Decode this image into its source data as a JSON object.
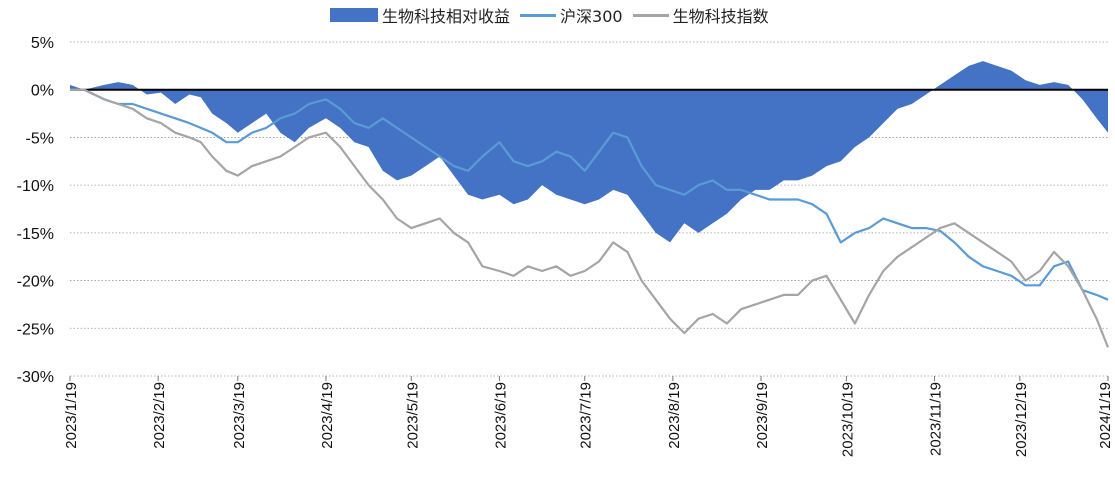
{
  "chart_data": {
    "type": "area",
    "x_is_date": true,
    "x_range": [
      "2023/1/19",
      "2024/1/19"
    ],
    "ylim": [
      -30,
      5
    ],
    "yticks": [
      5,
      0,
      -5,
      -10,
      -15,
      -20,
      -25,
      -30
    ],
    "ytick_labels": [
      "5%",
      "0%",
      "-5%",
      "-10%",
      "-15%",
      "-20%",
      "-25%",
      "-30%"
    ],
    "xtick_labels": [
      "2023/1/19",
      "2023/2/19",
      "2023/3/19",
      "2023/4/19",
      "2023/5/19",
      "2023/6/19",
      "2023/7/19",
      "2023/8/19",
      "2023/9/19",
      "2023/10/19",
      "2023/11/19",
      "2023/12/19",
      "2024/1/19"
    ],
    "grid": "horizontal dotted",
    "legend_position": "top-center",
    "series": [
      {
        "name": "生物科技相对收益",
        "kind": "area",
        "color": "#4472C4",
        "points": [
          [
            "2023/1/19",
            0.5
          ],
          [
            "2023/1/24",
            0.0
          ],
          [
            "2023/1/31",
            0.5
          ],
          [
            "2023/2/5",
            0.8
          ],
          [
            "2023/2/10",
            0.5
          ],
          [
            "2023/2/15",
            -0.5
          ],
          [
            "2023/2/20",
            -0.3
          ],
          [
            "2023/2/25",
            -1.5
          ],
          [
            "2023/3/2",
            -0.5
          ],
          [
            "2023/3/6",
            -0.8
          ],
          [
            "2023/3/10",
            -2.5
          ],
          [
            "2023/3/15",
            -3.5
          ],
          [
            "2023/3/19",
            -4.5
          ],
          [
            "2023/3/24",
            -3.5
          ],
          [
            "2023/3/29",
            -2.5
          ],
          [
            "2023/4/3",
            -4.5
          ],
          [
            "2023/4/8",
            -5.5
          ],
          [
            "2023/4/13",
            -4.0
          ],
          [
            "2023/4/19",
            -3.0
          ],
          [
            "2023/4/24",
            -4.0
          ],
          [
            "2023/4/29",
            -5.5
          ],
          [
            "2023/5/4",
            -6.0
          ],
          [
            "2023/5/9",
            -8.5
          ],
          [
            "2023/5/14",
            -9.5
          ],
          [
            "2023/5/19",
            -9.0
          ],
          [
            "2023/5/24",
            -8.0
          ],
          [
            "2023/5/29",
            -7.0
          ],
          [
            "2023/6/3",
            -9.0
          ],
          [
            "2023/6/8",
            -11.0
          ],
          [
            "2023/6/13",
            -11.5
          ],
          [
            "2023/6/19",
            -11.0
          ],
          [
            "2023/6/24",
            -12.0
          ],
          [
            "2023/6/29",
            -11.5
          ],
          [
            "2023/7/4",
            -10.0
          ],
          [
            "2023/7/9",
            -11.0
          ],
          [
            "2023/7/14",
            -11.5
          ],
          [
            "2023/7/19",
            -12.0
          ],
          [
            "2023/7/24",
            -11.5
          ],
          [
            "2023/7/29",
            -10.5
          ],
          [
            "2023/8/3",
            -11.0
          ],
          [
            "2023/8/8",
            -13.0
          ],
          [
            "2023/8/13",
            -15.0
          ],
          [
            "2023/8/18",
            -16.0
          ],
          [
            "2023/8/23",
            -14.0
          ],
          [
            "2023/8/28",
            -15.0
          ],
          [
            "2023/9/2",
            -14.0
          ],
          [
            "2023/9/7",
            -13.0
          ],
          [
            "2023/9/12",
            -11.5
          ],
          [
            "2023/9/17",
            -10.5
          ],
          [
            "2023/9/22",
            -10.5
          ],
          [
            "2023/9/27",
            -9.5
          ],
          [
            "2023/10/2",
            -9.5
          ],
          [
            "2023/10/7",
            -9.0
          ],
          [
            "2023/10/12",
            -8.0
          ],
          [
            "2023/10/17",
            -7.5
          ],
          [
            "2023/10/22",
            -6.0
          ],
          [
            "2023/10/27",
            -5.0
          ],
          [
            "2023/11/1",
            -3.5
          ],
          [
            "2023/11/6",
            -2.0
          ],
          [
            "2023/11/11",
            -1.5
          ],
          [
            "2023/11/16",
            -0.5
          ],
          [
            "2023/11/21",
            0.5
          ],
          [
            "2023/11/26",
            1.5
          ],
          [
            "2023/12/1",
            2.5
          ],
          [
            "2023/12/6",
            3.0
          ],
          [
            "2023/12/11",
            2.5
          ],
          [
            "2023/12/16",
            2.0
          ],
          [
            "2023/12/21",
            1.0
          ],
          [
            "2023/12/26",
            0.5
          ],
          [
            "2023/12/31",
            0.8
          ],
          [
            "2024/1/5",
            0.5
          ],
          [
            "2024/1/10",
            -1.0
          ],
          [
            "2024/1/15",
            -3.0
          ],
          [
            "2024/1/19",
            -4.5
          ]
        ]
      },
      {
        "name": "沪深300",
        "kind": "line",
        "color": "#5B9BD5",
        "points": [
          [
            "2023/1/19",
            0.0
          ],
          [
            "2023/1/24",
            0.0
          ],
          [
            "2023/1/31",
            -1.0
          ],
          [
            "2023/2/5",
            -1.5
          ],
          [
            "2023/2/10",
            -1.5
          ],
          [
            "2023/2/15",
            -2.0
          ],
          [
            "2023/2/20",
            -2.5
          ],
          [
            "2023/2/25",
            -3.0
          ],
          [
            "2023/3/2",
            -3.5
          ],
          [
            "2023/3/6",
            -4.0
          ],
          [
            "2023/3/10",
            -4.5
          ],
          [
            "2023/3/15",
            -5.5
          ],
          [
            "2023/3/19",
            -5.5
          ],
          [
            "2023/3/24",
            -4.5
          ],
          [
            "2023/3/29",
            -4.0
          ],
          [
            "2023/4/3",
            -3.0
          ],
          [
            "2023/4/8",
            -2.5
          ],
          [
            "2023/4/13",
            -1.5
          ],
          [
            "2023/4/19",
            -1.0
          ],
          [
            "2023/4/24",
            -2.0
          ],
          [
            "2023/4/29",
            -3.5
          ],
          [
            "2023/5/4",
            -4.0
          ],
          [
            "2023/5/9",
            -3.0
          ],
          [
            "2023/5/14",
            -4.0
          ],
          [
            "2023/5/19",
            -5.0
          ],
          [
            "2023/5/24",
            -6.0
          ],
          [
            "2023/5/29",
            -7.0
          ],
          [
            "2023/6/3",
            -8.0
          ],
          [
            "2023/6/8",
            -8.5
          ],
          [
            "2023/6/13",
            -7.0
          ],
          [
            "2023/6/19",
            -5.5
          ],
          [
            "2023/6/24",
            -7.5
          ],
          [
            "2023/6/29",
            -8.0
          ],
          [
            "2023/7/4",
            -7.5
          ],
          [
            "2023/7/9",
            -6.5
          ],
          [
            "2023/7/14",
            -7.0
          ],
          [
            "2023/7/19",
            -8.5
          ],
          [
            "2023/7/24",
            -6.5
          ],
          [
            "2023/7/29",
            -4.5
          ],
          [
            "2023/8/3",
            -5.0
          ],
          [
            "2023/8/8",
            -8.0
          ],
          [
            "2023/8/13",
            -10.0
          ],
          [
            "2023/8/18",
            -10.5
          ],
          [
            "2023/8/23",
            -11.0
          ],
          [
            "2023/8/28",
            -10.0
          ],
          [
            "2023/9/2",
            -9.5
          ],
          [
            "2023/9/7",
            -10.5
          ],
          [
            "2023/9/12",
            -10.5
          ],
          [
            "2023/9/17",
            -11.0
          ],
          [
            "2023/9/22",
            -11.5
          ],
          [
            "2023/9/27",
            -11.5
          ],
          [
            "2023/10/2",
            -11.5
          ],
          [
            "2023/10/7",
            -12.0
          ],
          [
            "2023/10/12",
            -13.0
          ],
          [
            "2023/10/17",
            -16.0
          ],
          [
            "2023/10/22",
            -15.0
          ],
          [
            "2023/10/27",
            -14.5
          ],
          [
            "2023/11/1",
            -13.5
          ],
          [
            "2023/11/6",
            -14.0
          ],
          [
            "2023/11/11",
            -14.5
          ],
          [
            "2023/11/16",
            -14.5
          ],
          [
            "2023/11/21",
            -14.8
          ],
          [
            "2023/11/26",
            -16.0
          ],
          [
            "2023/12/1",
            -17.5
          ],
          [
            "2023/12/6",
            -18.5
          ],
          [
            "2023/12/11",
            -19.0
          ],
          [
            "2023/12/16",
            -19.5
          ],
          [
            "2023/12/21",
            -20.5
          ],
          [
            "2023/12/26",
            -20.5
          ],
          [
            "2023/12/31",
            -18.5
          ],
          [
            "2024/1/5",
            -18.0
          ],
          [
            "2024/1/10",
            -21.0
          ],
          [
            "2024/1/15",
            -21.5
          ],
          [
            "2024/1/19",
            -22.0
          ]
        ]
      },
      {
        "name": "生物科技指数",
        "kind": "line",
        "color": "#A5A5A5",
        "points": [
          [
            "2023/1/19",
            0.0
          ],
          [
            "2023/1/24",
            0.0
          ],
          [
            "2023/1/31",
            -1.0
          ],
          [
            "2023/2/5",
            -1.5
          ],
          [
            "2023/2/10",
            -2.0
          ],
          [
            "2023/2/15",
            -3.0
          ],
          [
            "2023/2/20",
            -3.5
          ],
          [
            "2023/2/25",
            -4.5
          ],
          [
            "2023/3/2",
            -5.0
          ],
          [
            "2023/3/6",
            -5.5
          ],
          [
            "2023/3/10",
            -7.0
          ],
          [
            "2023/3/15",
            -8.5
          ],
          [
            "2023/3/19",
            -9.0
          ],
          [
            "2023/3/24",
            -8.0
          ],
          [
            "2023/3/29",
            -7.5
          ],
          [
            "2023/4/3",
            -7.0
          ],
          [
            "2023/4/8",
            -6.0
          ],
          [
            "2023/4/13",
            -5.0
          ],
          [
            "2023/4/19",
            -4.5
          ],
          [
            "2023/4/24",
            -6.0
          ],
          [
            "2023/4/29",
            -8.0
          ],
          [
            "2023/5/4",
            -10.0
          ],
          [
            "2023/5/9",
            -11.5
          ],
          [
            "2023/5/14",
            -13.5
          ],
          [
            "2023/5/19",
            -14.5
          ],
          [
            "2023/5/24",
            -14.0
          ],
          [
            "2023/5/29",
            -13.5
          ],
          [
            "2023/6/3",
            -15.0
          ],
          [
            "2023/6/8",
            -16.0
          ],
          [
            "2023/6/13",
            -18.5
          ],
          [
            "2023/6/19",
            -19.0
          ],
          [
            "2023/6/24",
            -19.5
          ],
          [
            "2023/6/29",
            -18.5
          ],
          [
            "2023/7/4",
            -19.0
          ],
          [
            "2023/7/9",
            -18.5
          ],
          [
            "2023/7/14",
            -19.5
          ],
          [
            "2023/7/19",
            -19.0
          ],
          [
            "2023/7/24",
            -18.0
          ],
          [
            "2023/7/29",
            -16.0
          ],
          [
            "2023/8/3",
            -17.0
          ],
          [
            "2023/8/8",
            -20.0
          ],
          [
            "2023/8/13",
            -22.0
          ],
          [
            "2023/8/18",
            -24.0
          ],
          [
            "2023/8/23",
            -25.5
          ],
          [
            "2023/8/28",
            -24.0
          ],
          [
            "2023/9/2",
            -23.5
          ],
          [
            "2023/9/7",
            -24.5
          ],
          [
            "2023/9/12",
            -23.0
          ],
          [
            "2023/9/17",
            -22.5
          ],
          [
            "2023/9/22",
            -22.0
          ],
          [
            "2023/9/27",
            -21.5
          ],
          [
            "2023/10/2",
            -21.5
          ],
          [
            "2023/10/7",
            -20.0
          ],
          [
            "2023/10/12",
            -19.5
          ],
          [
            "2023/10/17",
            -22.0
          ],
          [
            "2023/10/22",
            -24.5
          ],
          [
            "2023/10/27",
            -21.5
          ],
          [
            "2023/11/1",
            -19.0
          ],
          [
            "2023/11/6",
            -17.5
          ],
          [
            "2023/11/11",
            -16.5
          ],
          [
            "2023/11/16",
            -15.5
          ],
          [
            "2023/11/21",
            -14.5
          ],
          [
            "2023/11/26",
            -14.0
          ],
          [
            "2023/12/1",
            -15.0
          ],
          [
            "2023/12/6",
            -16.0
          ],
          [
            "2023/12/11",
            -17.0
          ],
          [
            "2023/12/16",
            -18.0
          ],
          [
            "2023/12/21",
            -20.0
          ],
          [
            "2023/12/26",
            -19.0
          ],
          [
            "2023/12/31",
            -17.0
          ],
          [
            "2024/1/5",
            -18.5
          ],
          [
            "2024/1/10",
            -21.0
          ],
          [
            "2024/1/15",
            -24.0
          ],
          [
            "2024/1/19",
            -27.0
          ]
        ]
      }
    ]
  }
}
